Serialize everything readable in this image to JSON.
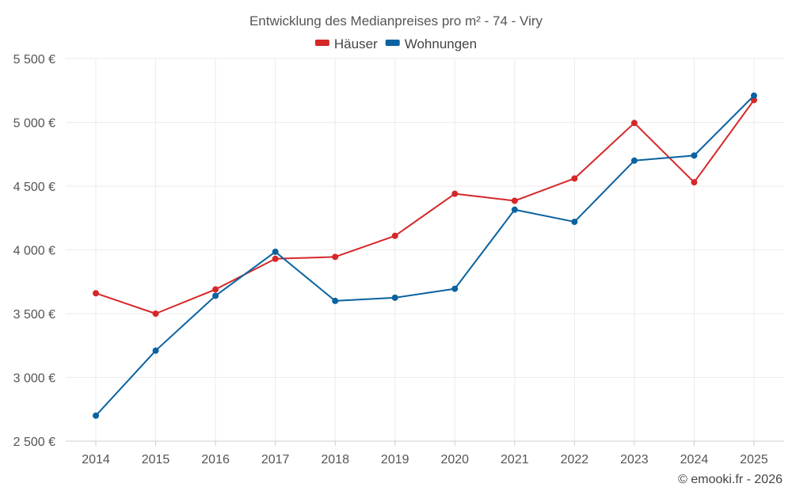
{
  "chart_data": {
    "type": "line",
    "title": "Entwicklung des Medianpreises pro m² - 74 - Viry",
    "categories": [
      "2014",
      "2015",
      "2016",
      "2017",
      "2018",
      "2019",
      "2020",
      "2021",
      "2022",
      "2023",
      "2024",
      "2025"
    ],
    "series": [
      {
        "name": "Häuser",
        "color": "#d62728",
        "values": [
          3660,
          3500,
          3690,
          3930,
          3945,
          4110,
          4440,
          4385,
          4560,
          4995,
          4530,
          5175
        ]
      },
      {
        "name": "Wohnungen",
        "color": "#0a62a0",
        "values": [
          2700,
          3210,
          3640,
          3985,
          3600,
          3625,
          3695,
          4315,
          4220,
          4700,
          4740,
          5210
        ]
      }
    ],
    "ylim": [
      2500,
      5500
    ],
    "yticks": [
      2500,
      3000,
      3500,
      4000,
      4500,
      5000,
      5500
    ],
    "ytick_labels": [
      "2 500 €",
      "3 000 €",
      "3 500 €",
      "4 000 €",
      "4 500 €",
      "5 000 €",
      "5 500 €"
    ],
    "xlabel": "",
    "ylabel": "",
    "grid": true,
    "legend_position": "top-center"
  },
  "credit": "© emooki.fr - 2026"
}
